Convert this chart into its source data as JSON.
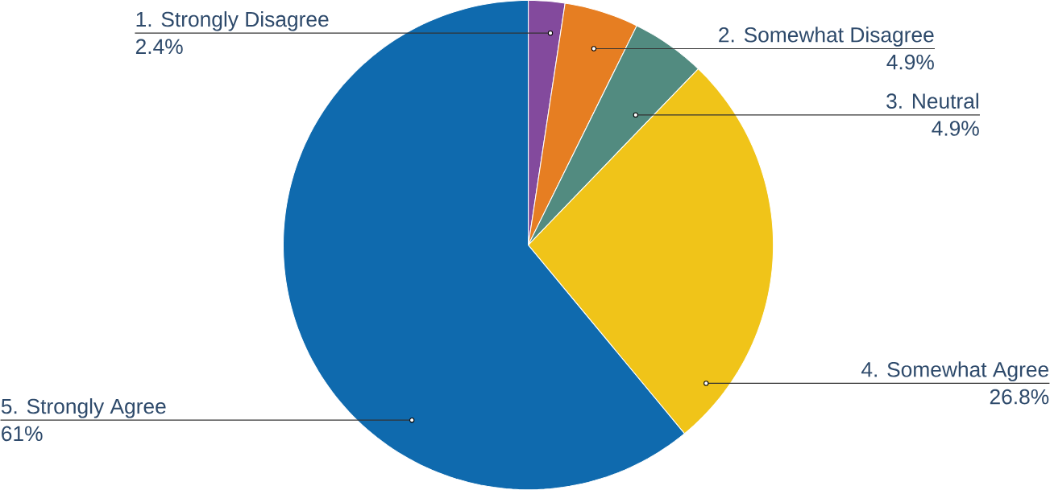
{
  "chart_data": {
    "type": "pie",
    "categories": [
      "1. Strongly Disagree",
      "2. Somewhat Disagree",
      "3. Neutral",
      "4. Somewhat Agree",
      "5. Strongly Agree"
    ],
    "values": [
      2.4,
      4.9,
      4.9,
      26.8,
      61
    ],
    "value_labels": [
      "2.4%",
      "4.9%",
      "4.9%",
      "26.8%",
      "61%"
    ],
    "colors": [
      "#834a9d",
      "#e67e22",
      "#528b80",
      "#f0c419",
      "#0f6aae"
    ]
  }
}
